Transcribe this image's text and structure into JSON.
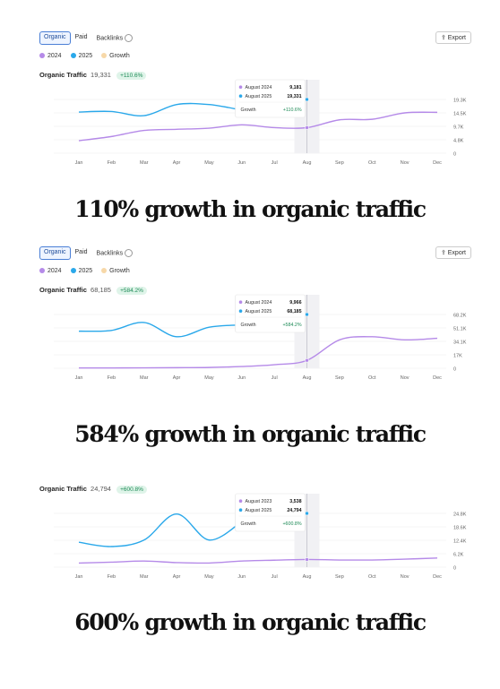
{
  "tabs": [
    "Organic",
    "Paid",
    "Backlinks"
  ],
  "export_label": "Export",
  "legend": [
    {
      "label": "2024",
      "color": "#b58ae8"
    },
    {
      "label": "2025",
      "color": "#2aa8ea"
    },
    {
      "label": "Growth",
      "color": "#f7d8a8"
    }
  ],
  "months": [
    "Jan",
    "Feb",
    "Mar",
    "Apr",
    "May",
    "Jun",
    "Jul",
    "Aug",
    "Sep",
    "Oct",
    "Nov",
    "Dec"
  ],
  "charts": [
    {
      "metric_label": "Organic Traffic",
      "metric_value": "19,331",
      "growth_badge": "+110.6%",
      "y_ticks": [
        "19.3K",
        "14.5K",
        "9.7K",
        "4.8K",
        "0"
      ],
      "tooltip": {
        "row1_label": "August 2024",
        "row1_value": "9,181",
        "row2_label": "August 2025",
        "row2_value": "19,331",
        "growth_label": "Growth",
        "growth_value": "+110.6%"
      },
      "caption": "110% growth in organic traffic"
    },
    {
      "metric_label": "Organic Traffic",
      "metric_value": "68,185",
      "growth_badge": "+584.2%",
      "y_ticks": [
        "68.2K",
        "51.1K",
        "34.1K",
        "17K",
        "0"
      ],
      "tooltip": {
        "row1_label": "August 2024",
        "row1_value": "9,966",
        "row2_label": "August 2025",
        "row2_value": "68,185",
        "growth_label": "Growth",
        "growth_value": "+584.2%"
      },
      "caption": "584% growth in organic traffic"
    },
    {
      "metric_label": "Organic Traffic",
      "metric_value": "24,794",
      "growth_badge": "+600.8%",
      "y_ticks": [
        "24.8K",
        "18.6K",
        "12.4K",
        "6.2K",
        "0"
      ],
      "tooltip": {
        "row1_label": "August 2023",
        "row1_value": "3,538",
        "row2_label": "August 2025",
        "row2_value": "24,794",
        "growth_label": "Growth",
        "growth_value": "+600.8%"
      },
      "caption": "600% growth in organic traffic"
    }
  ],
  "chart_data": [
    {
      "type": "line",
      "x": [
        "Jan",
        "Feb",
        "Mar",
        "Apr",
        "May",
        "Jun",
        "Jul",
        "Aug",
        "Sep",
        "Oct",
        "Nov",
        "Dec"
      ],
      "ylim": [
        0,
        19331
      ],
      "series": [
        {
          "name": "2024",
          "color": "#b58ae8",
          "values": [
            4500,
            6000,
            8200,
            8600,
            9000,
            10200,
            9200,
            9181,
            12000,
            12200,
            14500,
            14700
          ]
        },
        {
          "name": "2025",
          "color": "#2aa8ea",
          "values": [
            14800,
            15000,
            13500,
            17500,
            17500,
            15500,
            null,
            19331,
            null,
            null,
            null,
            null
          ]
        }
      ],
      "highlight_month": "Aug"
    },
    {
      "type": "line",
      "x": [
        "Jan",
        "Feb",
        "Mar",
        "Apr",
        "May",
        "Jun",
        "Jul",
        "Aug",
        "Sep",
        "Oct",
        "Nov",
        "Dec"
      ],
      "ylim": [
        0,
        68185
      ],
      "series": [
        {
          "name": "2024",
          "color": "#b58ae8",
          "values": [
            300,
            400,
            500,
            700,
            1000,
            2200,
            4500,
            9966,
            36000,
            40000,
            36000,
            38000
          ]
        },
        {
          "name": "2025",
          "color": "#2aa8ea",
          "values": [
            47000,
            48000,
            58000,
            40000,
            52000,
            55000,
            null,
            68185,
            null,
            null,
            null,
            null
          ]
        }
      ],
      "highlight_month": "Aug"
    },
    {
      "type": "line",
      "x": [
        "Jan",
        "Feb",
        "Mar",
        "Apr",
        "May",
        "Jun",
        "Jul",
        "Aug",
        "Sep",
        "Oct",
        "Nov",
        "Dec"
      ],
      "ylim": [
        0,
        24794
      ],
      "series": [
        {
          "name": "2023",
          "color": "#b58ae8",
          "values": [
            1900,
            2300,
            2800,
            2100,
            1900,
            2800,
            3200,
            3538,
            3300,
            3300,
            3700,
            4200
          ]
        },
        {
          "name": "2025",
          "color": "#2aa8ea",
          "values": [
            11500,
            9500,
            12500,
            24500,
            12500,
            21000,
            null,
            24794,
            null,
            null,
            null,
            null
          ]
        }
      ],
      "highlight_month": "Aug"
    }
  ]
}
